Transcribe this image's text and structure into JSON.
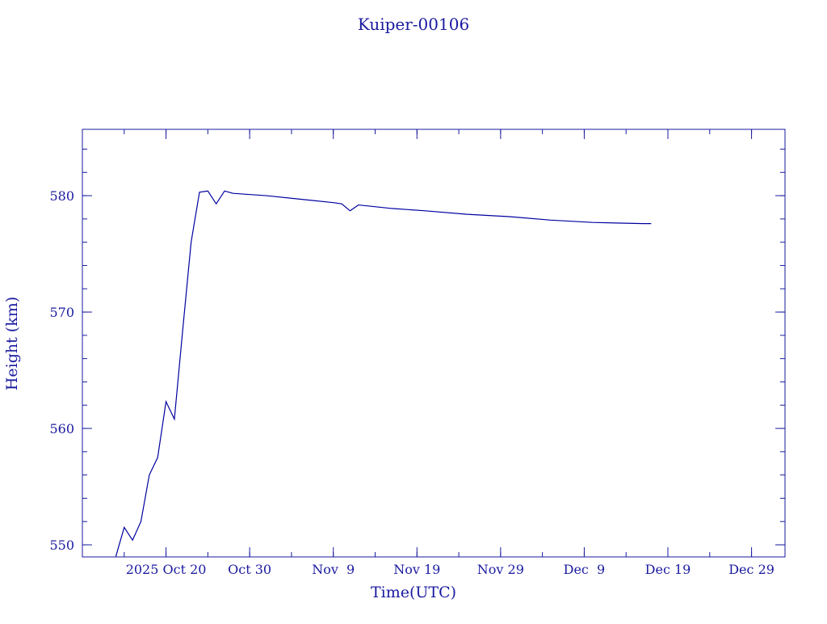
{
  "chart_data": {
    "type": "line",
    "title": "Kuiper-00106",
    "xlabel": "Time(UTC)",
    "ylabel": "Height (km)",
    "x": [
      "2025-10-14",
      "2025-10-15",
      "2025-10-16",
      "2025-10-17",
      "2025-10-18",
      "2025-10-19",
      "2025-10-20",
      "2025-10-21",
      "2025-10-22",
      "2025-10-23",
      "2025-10-24",
      "2025-10-25",
      "2025-10-26",
      "2025-10-27",
      "2025-10-28",
      "2025-11-01",
      "2025-11-05",
      "2025-11-09",
      "2025-11-10",
      "2025-11-11",
      "2025-11-12",
      "2025-11-16",
      "2025-11-20",
      "2025-11-25",
      "2025-11-30",
      "2025-12-05",
      "2025-12-10",
      "2025-12-16",
      "2025-12-17"
    ],
    "series": [
      {
        "name": "Kuiper-00106",
        "color": "#0000a0",
        "values": [
          549.0,
          551.5,
          550.4,
          552.0,
          556.0,
          557.5,
          562.3,
          560.8,
          568.5,
          576.0,
          580.3,
          580.4,
          579.3,
          580.4,
          580.2,
          580.0,
          579.7,
          579.4,
          579.3,
          578.7,
          579.2,
          578.9,
          578.7,
          578.4,
          578.2,
          577.9,
          577.7,
          577.6,
          577.6
        ]
      }
    ],
    "xlim": [
      "2025-10-10",
      "2026-01-02"
    ],
    "xticks": [
      {
        "value": "2025-10-20",
        "label": "2025 Oct 20"
      },
      {
        "value": "2025-10-30",
        "label": "Oct 30"
      },
      {
        "value": "2025-11-09",
        "label": "Nov  9"
      },
      {
        "value": "2025-11-19",
        "label": "Nov 19"
      },
      {
        "value": "2025-11-29",
        "label": "Nov 29"
      },
      {
        "value": "2025-12-09",
        "label": "Dec  9"
      },
      {
        "value": "2025-12-19",
        "label": "Dec 19"
      },
      {
        "value": "2025-12-29",
        "label": "Dec 29"
      }
    ],
    "ylim": [
      548.96,
      585.7
    ],
    "yticks": [
      550,
      560,
      570,
      580
    ]
  }
}
